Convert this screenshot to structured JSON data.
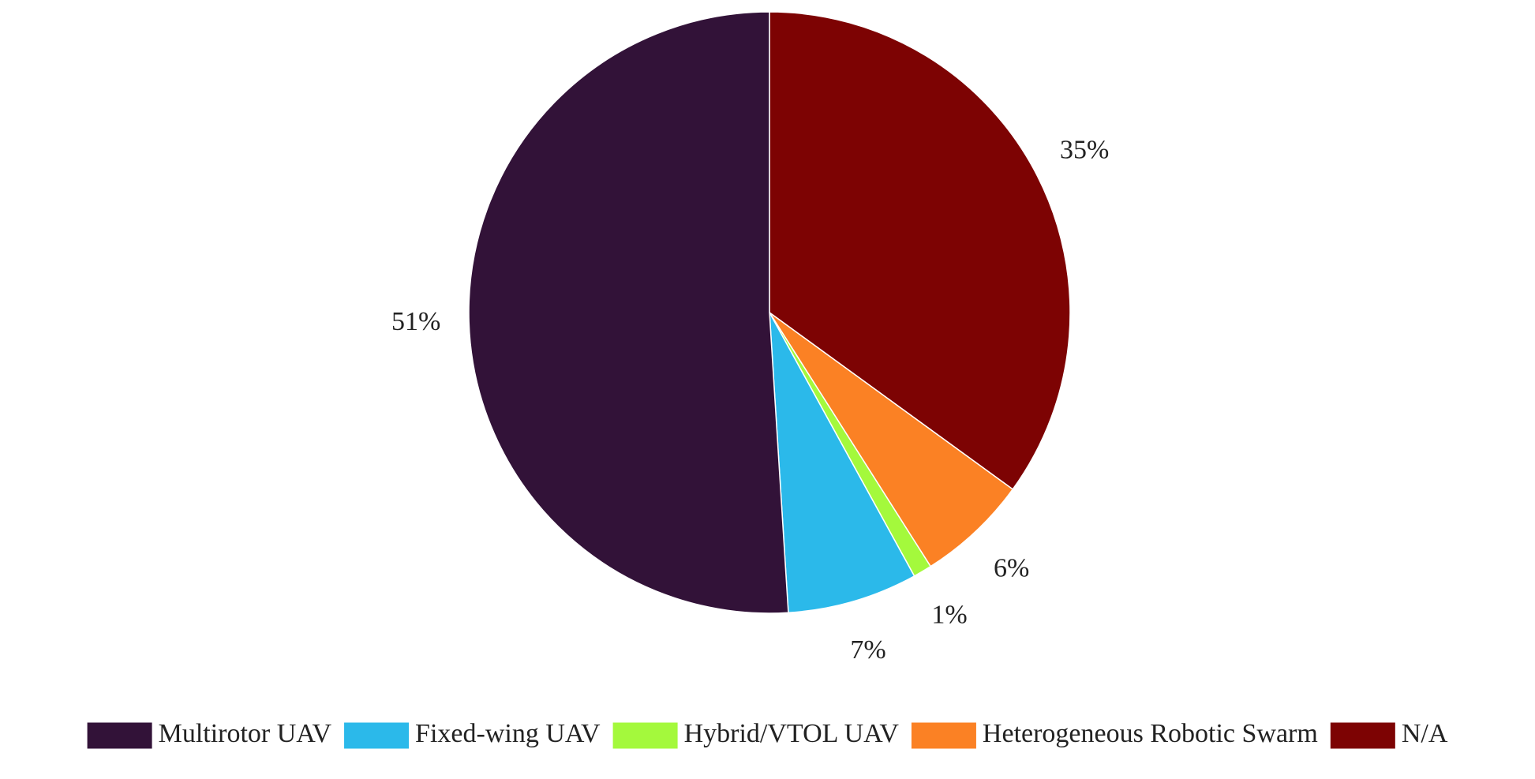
{
  "chart_data": {
    "type": "pie",
    "title": "",
    "start_angle_deg": 0,
    "direction": "clockwise",
    "legend_position": "bottom",
    "slices": [
      {
        "label": "N/A",
        "value": 35,
        "display": "35%",
        "color": "#7d0303"
      },
      {
        "label": "Heterogeneous Robotic Swarm",
        "value": 6,
        "display": "6%",
        "color": "#fb8124"
      },
      {
        "label": "Hybrid/VTOL UAV",
        "value": 1,
        "display": "1%",
        "color": "#a4f93c"
      },
      {
        "label": "Fixed-wing UAV",
        "value": 7,
        "display": "7%",
        "color": "#2bb9ea"
      },
      {
        "label": "Multirotor UAV",
        "value": 51,
        "display": "51%",
        "color": "#321238"
      }
    ],
    "legend_order": [
      "Multirotor UAV",
      "Fixed-wing UAV",
      "Hybrid/VTOL UAV",
      "Heterogeneous Robotic Swarm",
      "N/A"
    ]
  }
}
